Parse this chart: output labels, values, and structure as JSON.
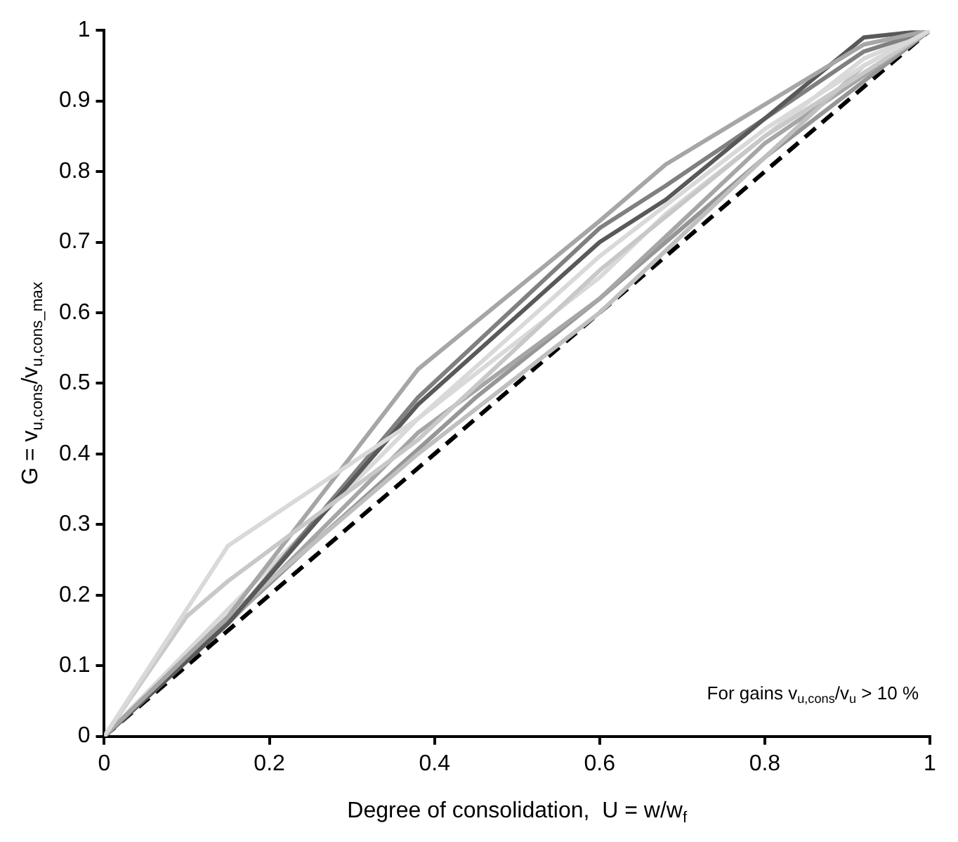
{
  "chart_data": {
    "type": "line",
    "xlabel": "Degree of consolidation,  U = w/w$_{f}$",
    "ylabel": "G = v$_{u,cons}$/v$_{u,cons_max}$",
    "annotations": [
      "For gains v$_{u,cons}$/v$_{u}$ > 10 %"
    ],
    "xlim": [
      0,
      1
    ],
    "xticks": [
      0,
      0.2,
      0.4,
      0.6,
      0.8,
      1
    ],
    "ylim": [
      0,
      1
    ],
    "yticks": [
      0,
      0.1,
      0.2,
      0.3,
      0.4,
      0.5,
      0.6,
      0.7,
      0.8,
      0.9,
      1
    ],
    "grid": false,
    "legend": false,
    "marker": "none",
    "line_style": "solid",
    "series": [
      {
        "color": "#d9d9d9",
        "x": [
          0,
          0.15,
          0.38,
          0.6,
          0.8,
          0.92,
          1
        ],
        "values": [
          0,
          0.27,
          0.45,
          0.68,
          0.86,
          0.95,
          1
        ]
      },
      {
        "color": "#c8c8c8",
        "x": [
          0,
          0.1,
          0.15,
          0.38,
          0.6,
          0.8,
          1
        ],
        "values": [
          0,
          0.17,
          0.22,
          0.42,
          0.66,
          0.85,
          1
        ]
      },
      {
        "color": "#a6a6a6",
        "x": [
          0,
          0.15,
          0.38,
          0.6,
          0.68,
          0.92,
          1
        ],
        "values": [
          0,
          0.17,
          0.52,
          0.73,
          0.81,
          0.98,
          1
        ]
      },
      {
        "color": "#595959",
        "x": [
          0,
          0.15,
          0.38,
          0.6,
          0.68,
          0.92,
          1
        ],
        "values": [
          0,
          0.16,
          0.47,
          0.7,
          0.76,
          0.99,
          1
        ]
      },
      {
        "color": "#808080",
        "x": [
          0,
          0.15,
          0.38,
          0.6,
          0.68,
          0.92,
          1
        ],
        "values": [
          0,
          0.16,
          0.48,
          0.72,
          0.78,
          0.97,
          1
        ]
      },
      {
        "color": "#bfbfbf",
        "x": [
          0,
          0.15,
          0.38,
          0.6,
          0.8,
          0.92,
          1
        ],
        "values": [
          0,
          0.17,
          0.4,
          0.6,
          0.82,
          0.95,
          1
        ]
      },
      {
        "color": "#a6a6a6",
        "x": [
          0,
          0.15,
          0.38,
          0.6,
          0.8,
          1
        ],
        "values": [
          0,
          0.16,
          0.43,
          0.62,
          0.84,
          1
        ]
      },
      {
        "color": "#d9d9d9",
        "x": [
          0,
          0.15,
          0.38,
          0.6,
          0.68,
          0.92,
          1
        ],
        "values": [
          0,
          0.18,
          0.45,
          0.65,
          0.74,
          0.96,
          1
        ]
      },
      {
        "color": "#969696",
        "x": [
          0,
          0.25,
          0.45,
          0.6,
          0.8,
          1
        ],
        "values": [
          0,
          0.27,
          0.48,
          0.62,
          0.82,
          1
        ]
      },
      {
        "color": "#000000",
        "line_style": "dashed",
        "x": [
          0,
          1
        ],
        "values": [
          0,
          1
        ]
      }
    ]
  }
}
